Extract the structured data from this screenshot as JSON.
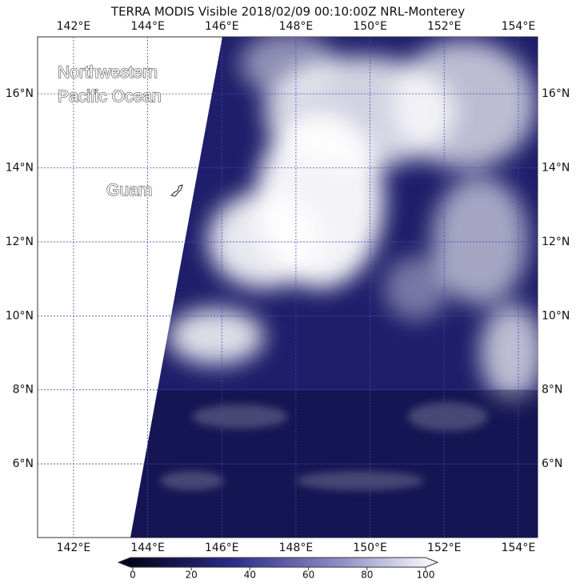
{
  "title": "TERRA MODIS Visible 2018/02/09 00:10:00Z NRL-Monterey",
  "map": {
    "lon_range": [
      141.03,
      154.52
    ],
    "lat_range": [
      4.01,
      17.54
    ],
    "longitudes": [
      {
        "value": 142,
        "label": "142°E"
      },
      {
        "value": 144,
        "label": "144°E"
      },
      {
        "value": 146,
        "label": "146°E"
      },
      {
        "value": 148,
        "label": "148°E"
      },
      {
        "value": 150,
        "label": "150°E"
      },
      {
        "value": 152,
        "label": "152°E"
      },
      {
        "value": 154,
        "label": "154°E"
      }
    ],
    "latitudes": [
      {
        "value": 16,
        "label": "16°N"
      },
      {
        "value": 14,
        "label": "14°N"
      },
      {
        "value": 12,
        "label": "12°N"
      },
      {
        "value": 10,
        "label": "10°N"
      },
      {
        "value": 8,
        "label": "8°N"
      },
      {
        "value": 6,
        "label": "6°N"
      }
    ]
  },
  "annotations": {
    "ocean_line1": "Northwestern",
    "ocean_line2": "Pacific Ocean",
    "island": "Guam"
  },
  "colorbar": {
    "range": [
      0,
      100
    ],
    "ticks": [
      0,
      20,
      40,
      60,
      80,
      100
    ]
  }
}
